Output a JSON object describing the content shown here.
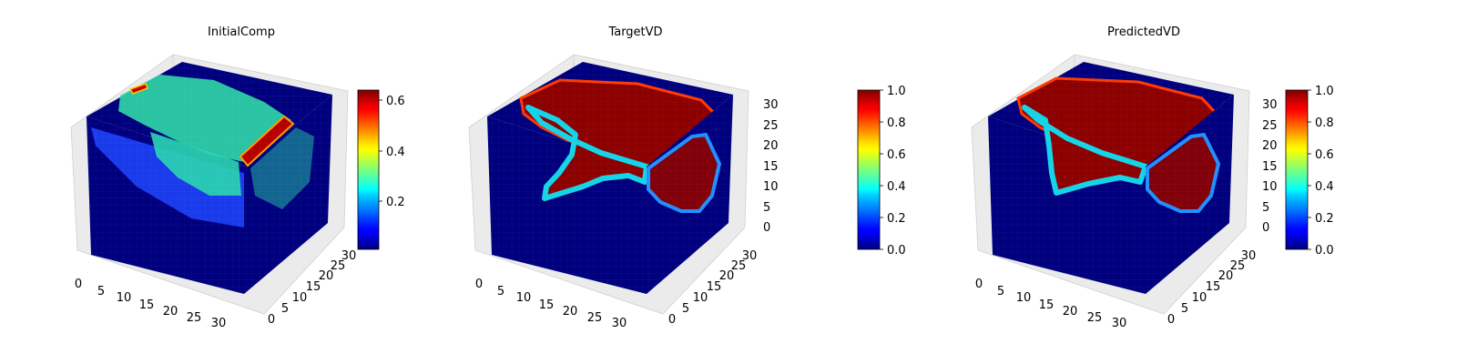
{
  "chart_data": [
    {
      "type": "voxel3d",
      "title": "InitialComp",
      "x_ticks": [
        "0",
        "5",
        "10",
        "15",
        "20",
        "25",
        "30"
      ],
      "y_ticks": [
        "0",
        "5",
        "10",
        "15",
        "20",
        "25",
        "30"
      ],
      "z_ticks": [],
      "colorbar": {
        "ticks": [
          "0.2",
          "0.4",
          "0.6"
        ],
        "range": [
          0.02,
          0.65
        ],
        "colormap": "jet"
      },
      "max_value": 0.65
    },
    {
      "type": "voxel3d",
      "title": "TargetVD",
      "x_ticks": [
        "0",
        "5",
        "10",
        "15",
        "20",
        "25",
        "30"
      ],
      "y_ticks": [
        "0",
        "5",
        "10",
        "15",
        "20",
        "25",
        "30"
      ],
      "z_ticks": [
        "0",
        "5",
        "10",
        "15",
        "20",
        "25",
        "30"
      ],
      "colorbar": {
        "ticks": [
          "0.0",
          "0.2",
          "0.4",
          "0.6",
          "0.8",
          "1.0"
        ],
        "range": [
          0.0,
          1.0
        ],
        "colormap": "jet"
      },
      "max_value": 1.0
    },
    {
      "type": "voxel3d",
      "title": "PredictedVD",
      "x_ticks": [
        "0",
        "5",
        "10",
        "15",
        "20",
        "25",
        "30"
      ],
      "y_ticks": [
        "0",
        "5",
        "10",
        "15",
        "20",
        "25",
        "30"
      ],
      "z_ticks": [
        "0",
        "5",
        "10",
        "15",
        "20",
        "25",
        "30"
      ],
      "colorbar": {
        "ticks": [
          "0.0",
          "0.2",
          "0.4",
          "0.6",
          "0.8",
          "1.0"
        ],
        "range": [
          0.0,
          1.0
        ],
        "colormap": "jet"
      },
      "max_value": 1.0
    }
  ]
}
